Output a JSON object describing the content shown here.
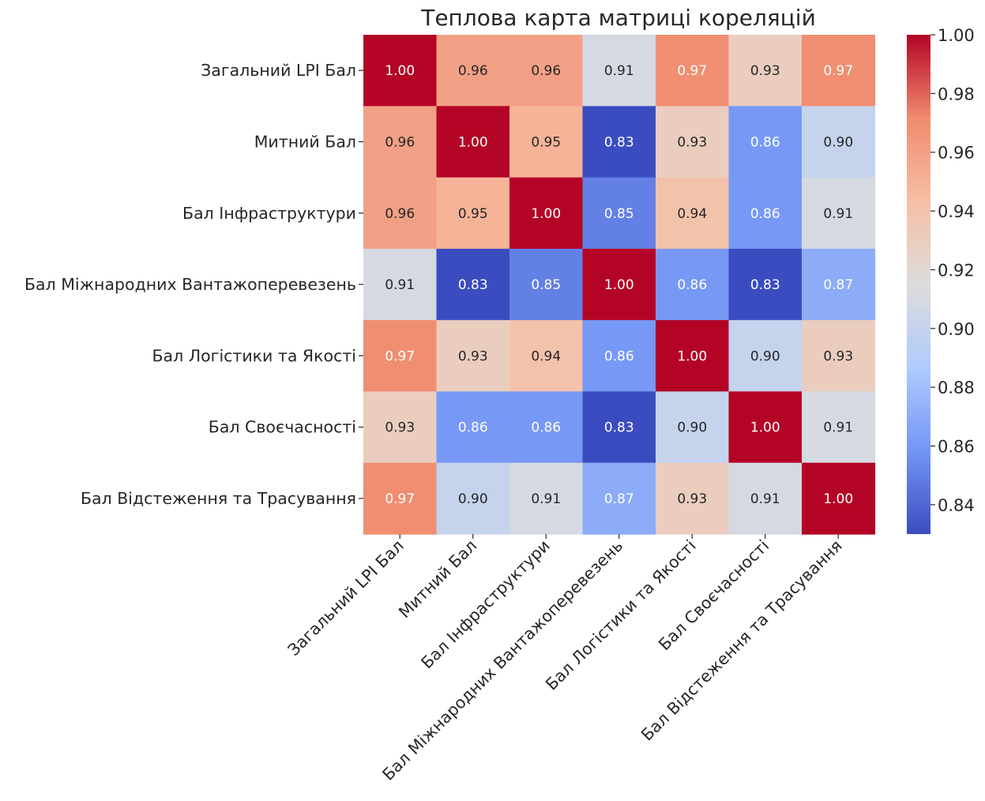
{
  "chart_data": {
    "type": "heatmap",
    "title": "Теплова карта матриці кореляцій",
    "xlabel": "",
    "ylabel": "",
    "row_labels": [
      "Загальний LPI Бал",
      "Митний Бал",
      "Бал Інфраструктури",
      "Бал Міжнародних Вантажоперевезень",
      "Бал Логістики та Якості",
      "Бал Своєчасності",
      "Бал Відстеження та Трасування"
    ],
    "col_labels": [
      "Загальний LPI Бал",
      "Митний Бал",
      "Бал Інфраструктури",
      "Бал Міжнародних Вантажоперевезень",
      "Бал Логістики та Якості",
      "Бал Своєчасності",
      "Бал Відстеження та Трасування"
    ],
    "values": [
      [
        1.0,
        0.96,
        0.96,
        0.91,
        0.97,
        0.93,
        0.97
      ],
      [
        0.96,
        1.0,
        0.95,
        0.83,
        0.93,
        0.86,
        0.9
      ],
      [
        0.96,
        0.95,
        1.0,
        0.85,
        0.94,
        0.86,
        0.91
      ],
      [
        0.91,
        0.83,
        0.85,
        1.0,
        0.86,
        0.83,
        0.87
      ],
      [
        0.97,
        0.93,
        0.94,
        0.86,
        1.0,
        0.9,
        0.93
      ],
      [
        0.93,
        0.86,
        0.86,
        0.83,
        0.9,
        1.0,
        0.91
      ],
      [
        0.97,
        0.9,
        0.91,
        0.87,
        0.93,
        0.91,
        1.0
      ]
    ],
    "value_labels": [
      [
        "1.00",
        "0.96",
        "0.96",
        "0.91",
        "0.97",
        "0.93",
        "0.97"
      ],
      [
        "0.96",
        "1.00",
        "0.95",
        "0.83",
        "0.93",
        "0.86",
        "0.90"
      ],
      [
        "0.96",
        "0.95",
        "1.00",
        "0.85",
        "0.94",
        "0.86",
        "0.91"
      ],
      [
        "0.91",
        "0.83",
        "0.85",
        "1.00",
        "0.86",
        "0.83",
        "0.87"
      ],
      [
        "0.97",
        "0.93",
        "0.94",
        "0.86",
        "1.00",
        "0.90",
        "0.93"
      ],
      [
        "0.93",
        "0.86",
        "0.86",
        "0.83",
        "0.90",
        "1.00",
        "0.91"
      ],
      [
        "0.97",
        "0.90",
        "0.91",
        "0.87",
        "0.93",
        "0.91",
        "1.00"
      ]
    ],
    "colorbar": {
      "range": [
        0.83,
        1.0
      ],
      "ticks": [
        0.84,
        0.86,
        0.88,
        0.9,
        0.92,
        0.94,
        0.96,
        0.98,
        1.0
      ],
      "tick_labels": [
        "0.84",
        "0.86",
        "0.88",
        "0.90",
        "0.92",
        "0.94",
        "0.96",
        "0.98",
        "1.00"
      ],
      "colormap": "coolwarm",
      "colormap_stops": [
        "#3b4cc0",
        "#7396f5",
        "#b0cbfc",
        "#dddcdc",
        "#f6bfa5",
        "#f08b6e",
        "#b40426"
      ]
    },
    "grid": false,
    "legend_position": "right"
  }
}
